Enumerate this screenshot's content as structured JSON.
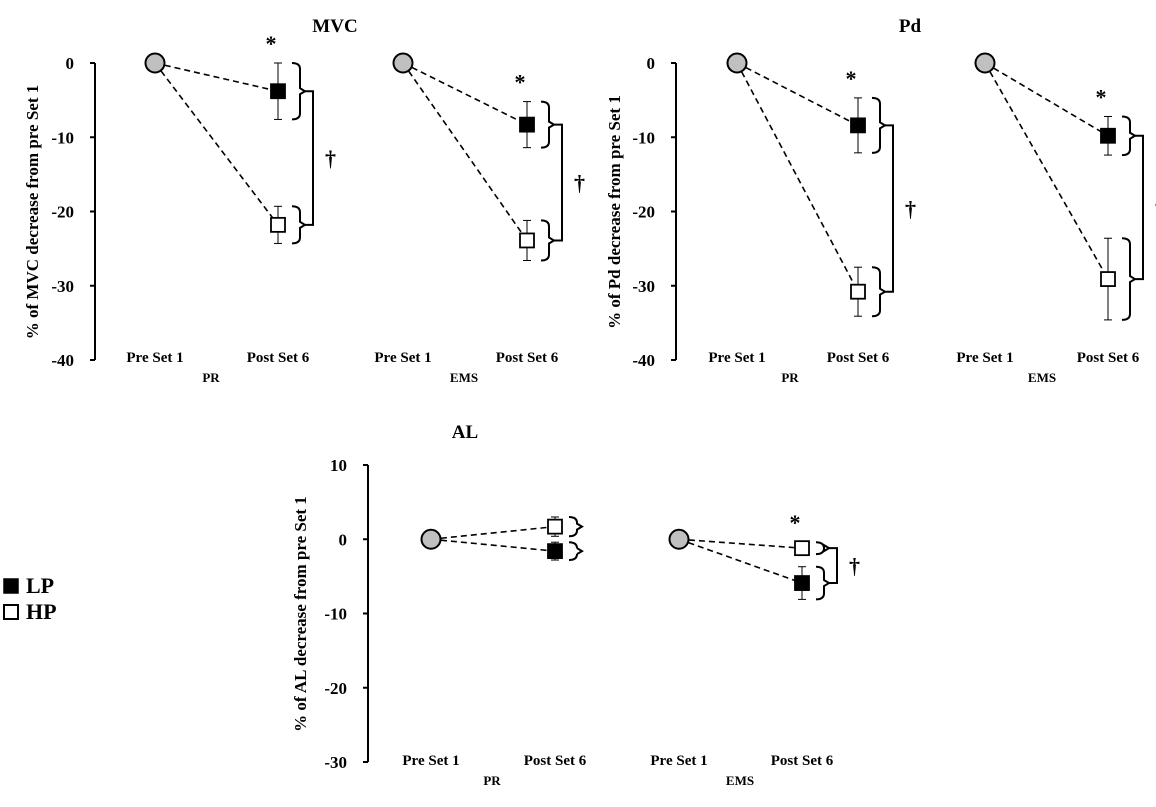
{
  "legend": {
    "items": [
      {
        "label": "LP",
        "fill": "#000000"
      },
      {
        "label": "HP",
        "fill": "#ffffff"
      }
    ]
  },
  "colors": {
    "baseline_marker": "#c0c0c0",
    "line": "#000000"
  },
  "chart_data": [
    {
      "type": "line",
      "title": "MVC",
      "ylabel": "% of  MVC decrease  from pre  Set 1",
      "ylim": [
        -40,
        0
      ],
      "yticks": [
        0,
        -10,
        -20,
        -30,
        -40
      ],
      "ytick_labels": [
        "0",
        "-10",
        "-20",
        "-30",
        "-40"
      ],
      "groups": [
        {
          "name": "PR",
          "categories": [
            "Pre Set 1",
            "Post Set 6"
          ],
          "series": [
            {
              "name": "LP",
              "values": [
                0,
                -3.8
              ],
              "error": [
                0,
                3.8
              ]
            },
            {
              "name": "HP",
              "values": [
                0,
                -21.8
              ],
              "error": [
                0,
                2.5
              ]
            }
          ],
          "annotations": [
            "*",
            "†"
          ]
        },
        {
          "name": "EMS",
          "categories": [
            "Pre Set 1",
            "Post Set 6"
          ],
          "series": [
            {
              "name": "LP",
              "values": [
                0,
                -8.3
              ],
              "error": [
                0,
                3.1
              ]
            },
            {
              "name": "HP",
              "values": [
                0,
                -23.9
              ],
              "error": [
                0,
                2.7
              ]
            }
          ],
          "annotations": [
            "*",
            "†"
          ]
        }
      ]
    },
    {
      "type": "line",
      "title": "Pd",
      "ylabel": "% of  Pd decrease from pre  Set 1",
      "ylim": [
        -40,
        0
      ],
      "yticks": [
        0,
        -10,
        -20,
        -30,
        -40
      ],
      "ytick_labels": [
        "0",
        "-10",
        "-20",
        "-30",
        "-40"
      ],
      "groups": [
        {
          "name": "PR",
          "categories": [
            "Pre Set 1",
            "Post Set 6"
          ],
          "series": [
            {
              "name": "LP",
              "values": [
                0,
                -8.4
              ],
              "error": [
                0,
                3.7
              ]
            },
            {
              "name": "HP",
              "values": [
                0,
                -30.8
              ],
              "error": [
                0,
                3.3
              ]
            }
          ],
          "annotations": [
            "*",
            "†"
          ]
        },
        {
          "name": "EMS",
          "categories": [
            "Pre Set 1",
            "Post Set 6"
          ],
          "series": [
            {
              "name": "LP",
              "values": [
                0,
                -9.8
              ],
              "error": [
                0,
                2.6
              ]
            },
            {
              "name": "HP",
              "values": [
                0,
                -29.1
              ],
              "error": [
                0,
                5.5
              ]
            }
          ],
          "annotations": [
            "*",
            "†"
          ]
        }
      ]
    },
    {
      "type": "line",
      "title": "AL",
      "ylabel": "% of  AL  decrease from pre  Set 1",
      "ylim": [
        -30,
        10
      ],
      "yticks": [
        10,
        0,
        -10,
        -20,
        -30
      ],
      "ytick_labels": [
        "10",
        "0",
        "-10",
        "-20",
        "-30"
      ],
      "groups": [
        {
          "name": "PR",
          "categories": [
            "Pre Set 1",
            "Post Set 6"
          ],
          "series": [
            {
              "name": "LP",
              "values": [
                0,
                -1.6
              ],
              "error": [
                0,
                1.2
              ]
            },
            {
              "name": "HP",
              "values": [
                0,
                1.7
              ],
              "error": [
                0,
                1.3
              ]
            }
          ],
          "annotations": []
        },
        {
          "name": "EMS",
          "categories": [
            "Pre Set 1",
            "Post Set 6"
          ],
          "series": [
            {
              "name": "LP",
              "values": [
                0,
                -5.9
              ],
              "error": [
                0,
                2.2
              ]
            },
            {
              "name": "HP",
              "values": [
                0,
                -1.2
              ],
              "error": [
                0,
                0.8
              ]
            }
          ],
          "annotations": [
            "*",
            "†"
          ]
        }
      ]
    }
  ]
}
